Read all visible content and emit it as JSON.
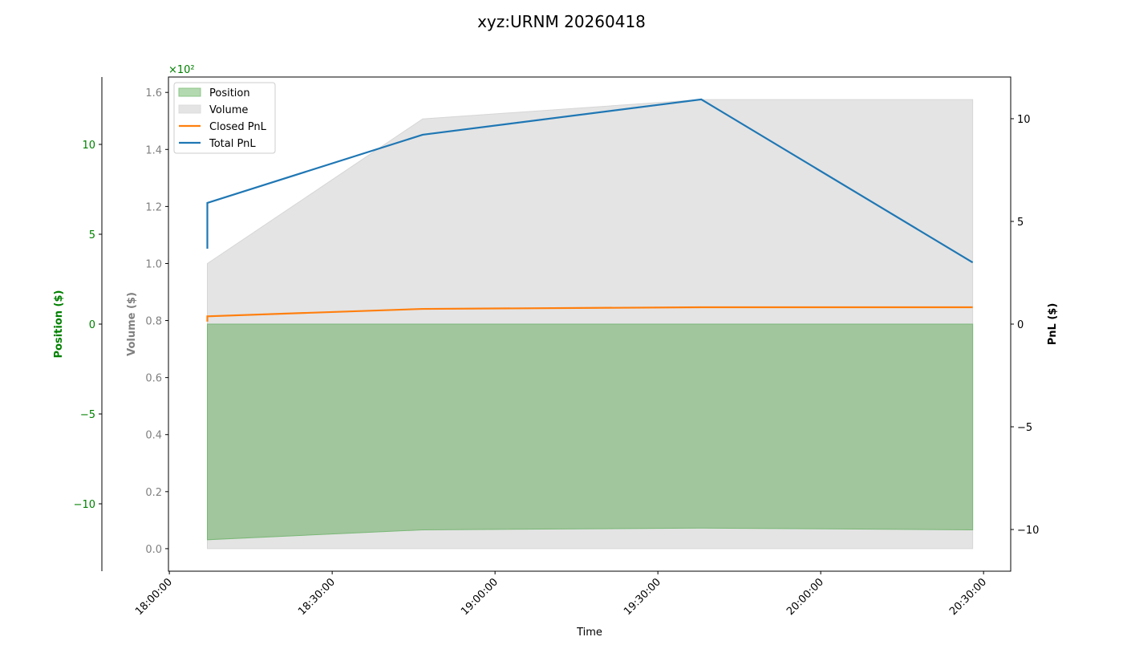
{
  "chart_data": {
    "type": "area",
    "title": "xyz:URNM 20260418",
    "xlabel": "Time",
    "x_ticks": [
      "18:00:00",
      "18:30:00",
      "19:00:00",
      "19:30:00",
      "20:00:00",
      "20:30:00"
    ],
    "xlim": [
      "17:59:50",
      "20:35:00"
    ],
    "x": [
      "18:07:00",
      "18:07:00",
      "18:46:40",
      "19:38:00",
      "20:28:00"
    ],
    "axes": {
      "position": {
        "label": "Position ($)",
        "color": "#008000",
        "ylim": [
          -13.75,
          13.75
        ],
        "ticks": [
          10,
          5,
          0,
          -5,
          -10
        ],
        "tick_labels": [
          "10",
          "5",
          "0",
          "−5",
          "−10"
        ]
      },
      "volume": {
        "label": "Volume ($)",
        "color": "#808080",
        "ylim": [
          -7.9,
          165.4
        ],
        "ticks": [
          0,
          20,
          40,
          60,
          80,
          100,
          120,
          140,
          160
        ],
        "tick_labels": [
          "0.0",
          "0.2",
          "0.4",
          "0.6",
          "0.8",
          "1.0",
          "1.2",
          "1.4",
          "1.6"
        ],
        "offset_text": "×10²"
      },
      "pnl": {
        "label": "PnL ($)",
        "color": "#000000",
        "ylim": [
          -12.03,
          12.03
        ],
        "ticks": [
          10,
          5,
          0,
          -5,
          -10
        ],
        "tick_labels": [
          "10",
          "5",
          "0",
          "−5",
          "−10"
        ]
      }
    },
    "series": [
      {
        "name": "Position",
        "kind": "fill",
        "axis": "position",
        "color": "#4caf50",
        "values": [
          0,
          -12.0,
          -11.45,
          -11.35,
          -11.45
        ]
      },
      {
        "name": "Volume",
        "kind": "fill",
        "axis": "volume",
        "color": "#cccccc",
        "values": [
          0,
          100,
          150.7,
          157.5,
          157.5
        ]
      },
      {
        "name": "Closed PnL",
        "kind": "line",
        "axis": "pnl",
        "color": "#ff7f0e",
        "values": [
          0.12,
          0.38,
          0.74,
          0.82,
          0.82
        ]
      },
      {
        "name": "Total PnL",
        "kind": "line",
        "axis": "pnl",
        "color": "#1f77b4",
        "values": [
          3.67,
          5.9,
          9.22,
          10.94,
          3.0
        ]
      }
    ],
    "legend": "top-left",
    "grid": false
  }
}
